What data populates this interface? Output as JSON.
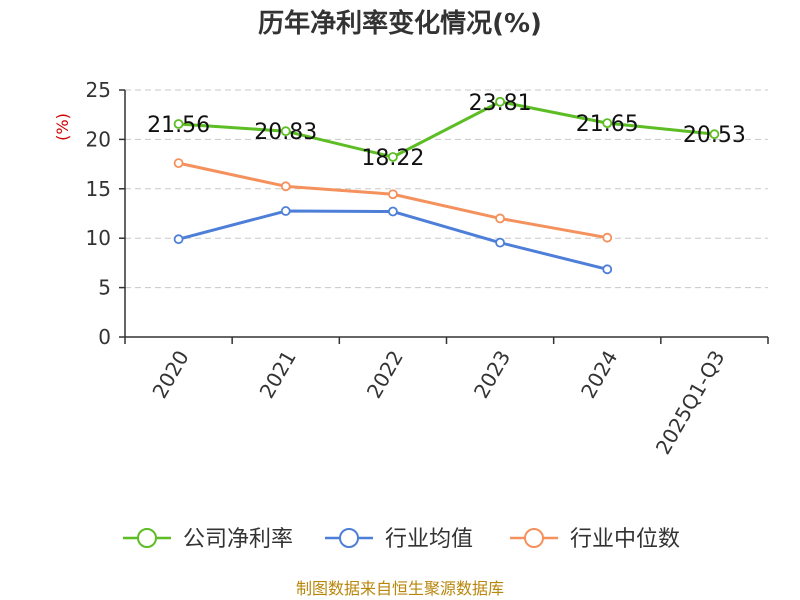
{
  "chart_data": {
    "type": "line",
    "title": "历年净利率变化情况(%)",
    "ylabel": "(%)",
    "xlabel": "",
    "ylim": [
      0,
      25
    ],
    "yticks": [
      0,
      5,
      10,
      15,
      20,
      25
    ],
    "grid": true,
    "legend_position": "bottom",
    "categories": [
      "2020",
      "2021",
      "2022",
      "2023",
      "2024",
      "2025Q1-Q3"
    ],
    "series": [
      {
        "name": "公司净利率",
        "color": "#5cbd24",
        "values": [
          21.56,
          20.83,
          18.22,
          23.81,
          21.65,
          20.53
        ],
        "labels": [
          "21.56",
          "20.83",
          "18.22",
          "23.81",
          "21.65",
          "20.53"
        ]
      },
      {
        "name": "行业均值",
        "color": "#4e7fd8",
        "values": [
          9.9,
          12.75,
          12.7,
          9.55,
          6.85,
          null
        ]
      },
      {
        "name": "行业中位数",
        "color": "#f4915d",
        "values": [
          17.6,
          15.25,
          14.45,
          12.0,
          10.05,
          null
        ]
      }
    ],
    "source": "制图数据来自恒生聚源数据库"
  }
}
